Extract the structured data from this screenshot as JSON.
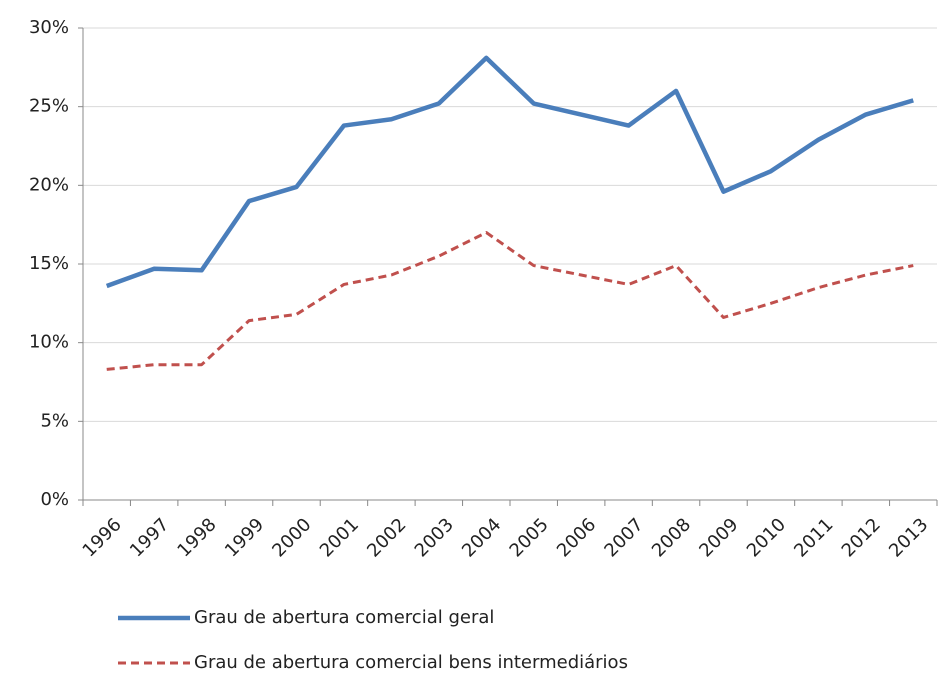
{
  "chart_data": {
    "type": "line",
    "categories": [
      "1996",
      "1997",
      "1998",
      "1999",
      "2000",
      "2001",
      "2002",
      "2003",
      "2004",
      "2005",
      "2006",
      "2007",
      "2008",
      "2009",
      "2010",
      "2011",
      "2012",
      "2013"
    ],
    "series": [
      {
        "name": "Grau de abertura comercial geral",
        "color": "#4a7ebb",
        "dash": "solid",
        "values": [
          13.6,
          14.7,
          14.6,
          19.0,
          19.9,
          23.8,
          24.2,
          25.2,
          28.1,
          25.2,
          24.5,
          23.8,
          26.0,
          19.6,
          20.9,
          22.9,
          24.5,
          25.4
        ]
      },
      {
        "name": "Grau de abertura comercial bens intermediários",
        "color": "#c0504d",
        "dash": "dashed",
        "values": [
          8.3,
          8.6,
          8.6,
          11.4,
          11.8,
          13.7,
          14.3,
          15.5,
          17.0,
          14.9,
          14.3,
          13.7,
          14.9,
          11.6,
          12.5,
          13.5,
          14.3,
          14.9
        ]
      }
    ],
    "ylim": [
      0,
      30
    ],
    "yticks": [
      {
        "value": 0,
        "label": "0%"
      },
      {
        "value": 5,
        "label": "5%"
      },
      {
        "value": 10,
        "label": "10%"
      },
      {
        "value": 15,
        "label": "15%"
      },
      {
        "value": 20,
        "label": "20%"
      },
      {
        "value": 25,
        "label": "25%"
      },
      {
        "value": 30,
        "label": "30%"
      }
    ],
    "grid": true,
    "legend": "bottom"
  }
}
